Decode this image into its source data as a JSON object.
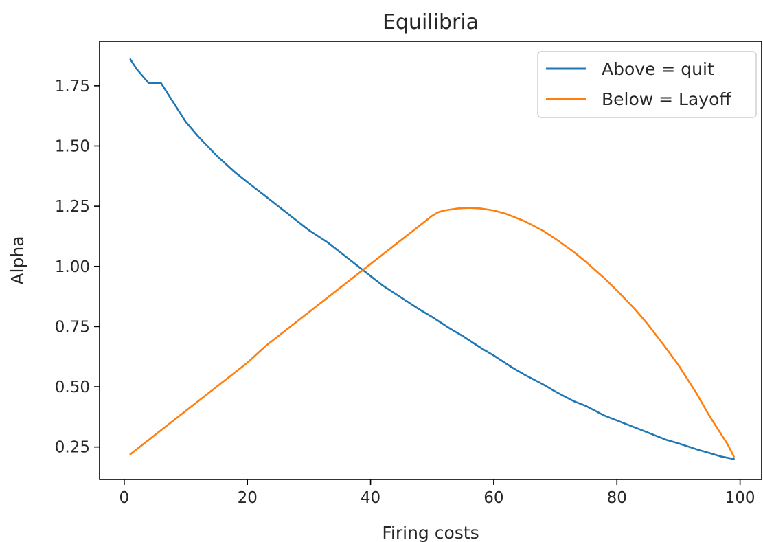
{
  "chart_data": {
    "type": "line",
    "title": "Equilibria",
    "xlabel": "Firing costs",
    "ylabel": "Alpha",
    "xlim": [
      -4,
      103.5
    ],
    "ylim": [
      0.115,
      1.935
    ],
    "xticks": [
      0,
      20,
      40,
      60,
      80,
      100
    ],
    "yticks": [
      0.25,
      0.5,
      0.75,
      1.0,
      1.25,
      1.5,
      1.75
    ],
    "xtick_labels": [
      "0",
      "20",
      "40",
      "60",
      "80",
      "100"
    ],
    "ytick_labels": [
      "0.25",
      "0.50",
      "0.75",
      "1.00",
      "1.25",
      "1.50",
      "1.75"
    ],
    "grid": false,
    "legend_position": "top-right",
    "series": [
      {
        "name": "Above = quit",
        "color": "#1f77b4",
        "x": [
          1,
          2,
          3,
          4,
          5,
          6,
          8,
          10,
          12,
          15,
          18,
          20,
          22,
          25,
          28,
          30,
          33,
          35,
          38,
          40,
          42,
          45,
          48,
          50,
          53,
          55,
          58,
          60,
          63,
          65,
          68,
          70,
          73,
          75,
          78,
          80,
          83,
          85,
          88,
          90,
          93,
          95,
          97,
          99
        ],
        "y": [
          1.86,
          1.82,
          1.79,
          1.76,
          1.76,
          1.76,
          1.68,
          1.6,
          1.54,
          1.46,
          1.39,
          1.35,
          1.31,
          1.25,
          1.19,
          1.15,
          1.1,
          1.06,
          1.0,
          0.96,
          0.92,
          0.87,
          0.82,
          0.79,
          0.74,
          0.71,
          0.66,
          0.63,
          0.58,
          0.55,
          0.51,
          0.48,
          0.44,
          0.42,
          0.38,
          0.36,
          0.33,
          0.31,
          0.28,
          0.265,
          0.24,
          0.225,
          0.21,
          0.2
        ]
      },
      {
        "name": "Below = Layoff",
        "color": "#ff7f0e",
        "x": [
          1,
          3,
          5,
          7,
          10,
          13,
          15,
          18,
          20,
          23,
          25,
          28,
          30,
          33,
          35,
          38,
          40,
          43,
          45,
          48,
          50,
          51,
          52,
          54,
          56,
          58,
          60,
          62,
          65,
          68,
          70,
          73,
          75,
          78,
          80,
          83,
          85,
          88,
          90,
          93,
          95,
          97,
          98,
          99
        ],
        "y": [
          0.22,
          0.26,
          0.3,
          0.34,
          0.4,
          0.46,
          0.5,
          0.56,
          0.6,
          0.67,
          0.71,
          0.77,
          0.81,
          0.87,
          0.91,
          0.97,
          1.01,
          1.07,
          1.11,
          1.17,
          1.21,
          1.225,
          1.232,
          1.24,
          1.243,
          1.24,
          1.232,
          1.218,
          1.188,
          1.148,
          1.115,
          1.06,
          1.018,
          0.95,
          0.9,
          0.82,
          0.76,
          0.66,
          0.59,
          0.47,
          0.38,
          0.3,
          0.26,
          0.21
        ]
      }
    ]
  }
}
